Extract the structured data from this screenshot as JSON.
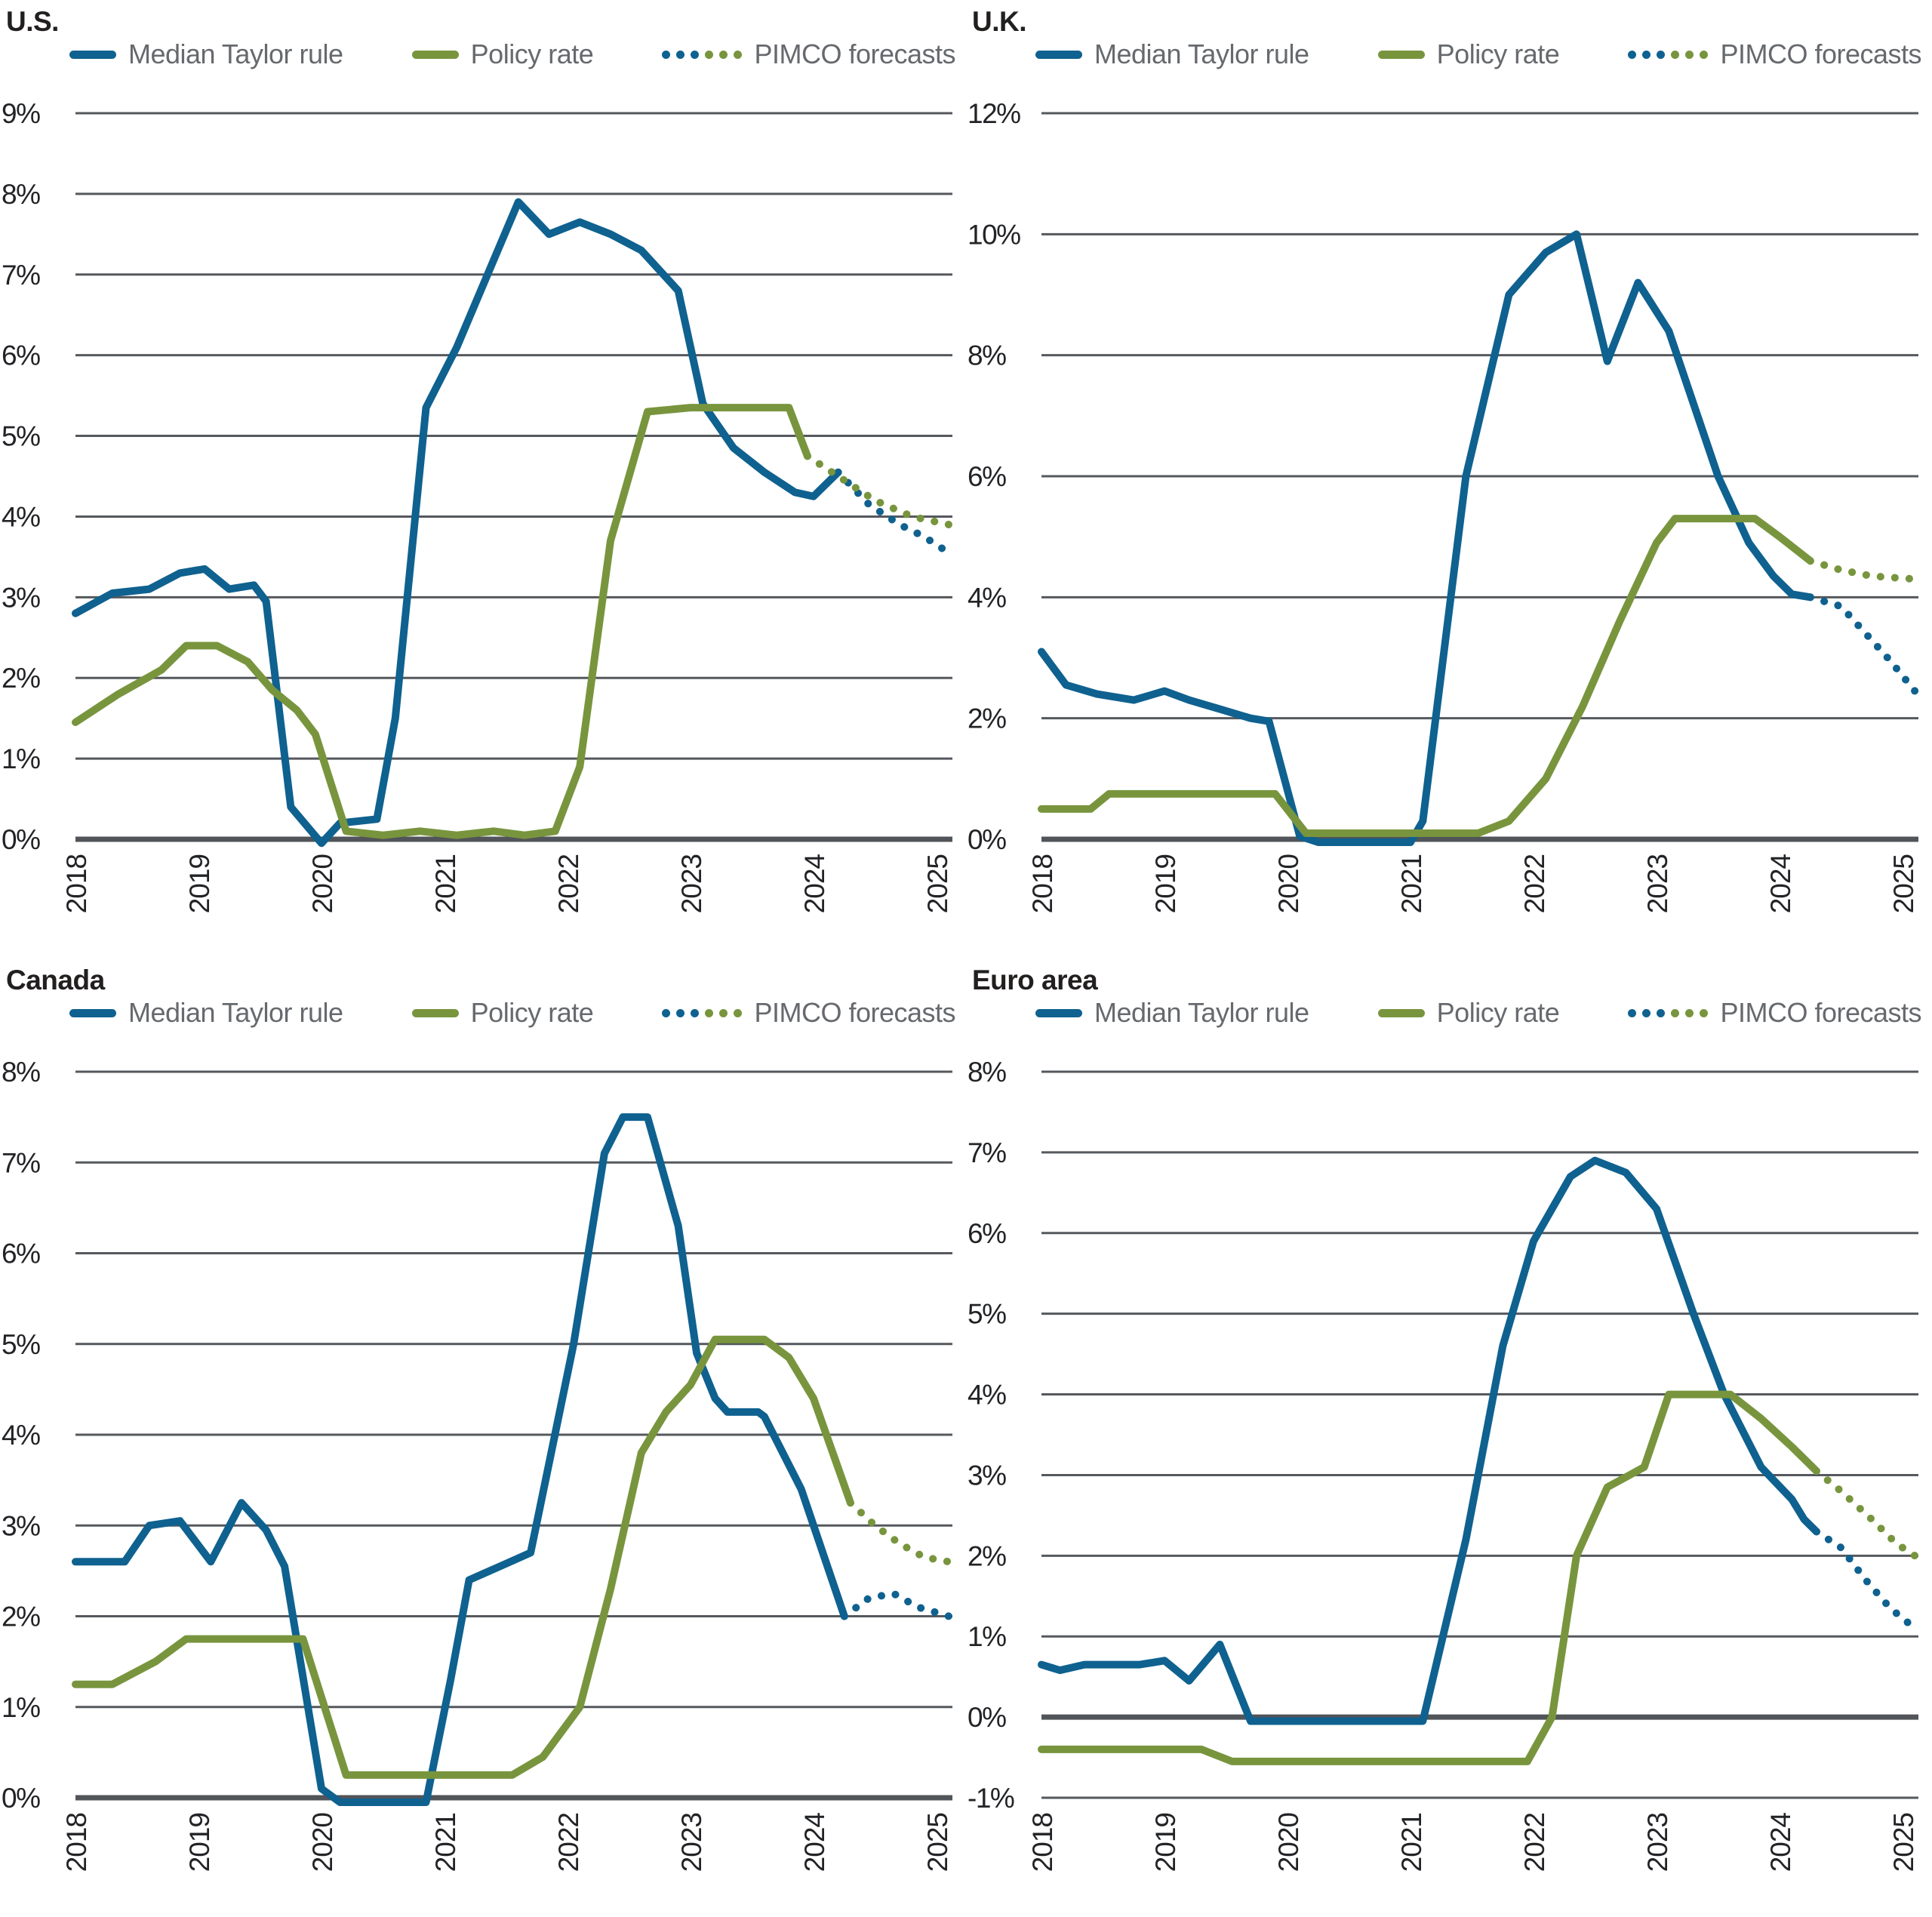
{
  "colors": {
    "taylor": "#0F618F",
    "policy": "#78953E",
    "gridline": "#55585D",
    "zero_line": "#515459",
    "title_text": "#221F1F",
    "legend_text": "#66696D",
    "tick_text": "#222326",
    "background": "#FFFFFF"
  },
  "legend": {
    "taylor": "Median Taylor rule",
    "policy": "Policy rate",
    "forecast": "PIMCO forecasts"
  },
  "chart_data": [
    {
      "id": "us",
      "title": "U.S.",
      "type": "line",
      "ylabel": "percent",
      "ylim": [
        0,
        9
      ],
      "yticks": [
        9,
        8,
        7,
        6,
        5,
        4,
        3,
        2,
        1,
        0
      ],
      "x_labels": [
        2018,
        2019,
        2020,
        2021,
        2022,
        2023,
        2024,
        2025
      ],
      "x_range": [
        2018,
        2025.1
      ],
      "grid": "horizontal",
      "legend_position": "top",
      "series": [
        {
          "name": "Median Taylor rule",
          "color": "taylor",
          "style": "solid",
          "points": [
            [
              2018.0,
              2.8
            ],
            [
              2018.3,
              3.05
            ],
            [
              2018.6,
              3.1
            ],
            [
              2018.85,
              3.3
            ],
            [
              2019.05,
              3.35
            ],
            [
              2019.25,
              3.1
            ],
            [
              2019.45,
              3.15
            ],
            [
              2019.55,
              2.95
            ],
            [
              2019.75,
              0.4
            ],
            [
              2020.0,
              -0.05
            ],
            [
              2020.15,
              0.2
            ],
            [
              2020.45,
              0.25
            ],
            [
              2020.6,
              1.5
            ],
            [
              2020.85,
              5.35
            ],
            [
              2021.1,
              6.1
            ],
            [
              2021.35,
              7.0
            ],
            [
              2021.6,
              7.9
            ],
            [
              2021.85,
              7.5
            ],
            [
              2022.1,
              7.65
            ],
            [
              2022.35,
              7.5
            ],
            [
              2022.6,
              7.3
            ],
            [
              2022.9,
              6.8
            ],
            [
              2023.1,
              5.4
            ],
            [
              2023.35,
              4.85
            ],
            [
              2023.6,
              4.55
            ],
            [
              2023.85,
              4.3
            ],
            [
              2024.0,
              4.25
            ],
            [
              2024.2,
              4.55
            ]
          ]
        },
        {
          "name": "Policy rate",
          "color": "policy",
          "style": "solid",
          "points": [
            [
              2018.0,
              1.45
            ],
            [
              2018.35,
              1.8
            ],
            [
              2018.7,
              2.1
            ],
            [
              2018.9,
              2.4
            ],
            [
              2019.15,
              2.4
            ],
            [
              2019.4,
              2.2
            ],
            [
              2019.6,
              1.85
            ],
            [
              2019.8,
              1.6
            ],
            [
              2019.95,
              1.3
            ],
            [
              2020.2,
              0.1
            ],
            [
              2020.5,
              0.05
            ],
            [
              2020.8,
              0.1
            ],
            [
              2021.1,
              0.05
            ],
            [
              2021.4,
              0.1
            ],
            [
              2021.65,
              0.05
            ],
            [
              2021.9,
              0.1
            ],
            [
              2022.1,
              0.9
            ],
            [
              2022.35,
              3.7
            ],
            [
              2022.65,
              5.3
            ],
            [
              2023.0,
              5.35
            ],
            [
              2023.8,
              5.35
            ],
            [
              2023.95,
              4.75
            ]
          ]
        },
        {
          "name": "PIMCO forecast (Taylor rule)",
          "color": "taylor",
          "style": "dotted",
          "points": [
            [
              2024.2,
              4.55
            ],
            [
              2024.45,
              4.15
            ],
            [
              2024.7,
              3.9
            ],
            [
              2024.9,
              3.75
            ],
            [
              2025.1,
              3.55
            ]
          ]
        },
        {
          "name": "PIMCO forecast (policy rate)",
          "color": "policy",
          "style": "dotted",
          "points": [
            [
              2023.95,
              4.75
            ],
            [
              2024.2,
              4.5
            ],
            [
              2024.5,
              4.2
            ],
            [
              2024.8,
              4.0
            ],
            [
              2025.1,
              3.9
            ]
          ]
        }
      ]
    },
    {
      "id": "uk",
      "title": "U.K.",
      "type": "line",
      "ylabel": "percent",
      "ylim": [
        0,
        12
      ],
      "yticks": [
        12,
        10,
        8,
        6,
        4,
        2,
        0
      ],
      "x_labels": [
        2018,
        2019,
        2020,
        2021,
        2022,
        2023,
        2024,
        2025
      ],
      "x_range": [
        2018,
        2025.1
      ],
      "grid": "horizontal",
      "legend_position": "top",
      "series": [
        {
          "name": "Median Taylor rule",
          "color": "taylor",
          "style": "solid",
          "points": [
            [
              2018.0,
              3.1
            ],
            [
              2018.2,
              2.55
            ],
            [
              2018.45,
              2.4
            ],
            [
              2018.75,
              2.3
            ],
            [
              2019.0,
              2.45
            ],
            [
              2019.2,
              2.3
            ],
            [
              2019.45,
              2.15
            ],
            [
              2019.7,
              2.0
            ],
            [
              2019.85,
              1.95
            ],
            [
              2020.1,
              0.05
            ],
            [
              2020.25,
              -0.05
            ],
            [
              2021.0,
              -0.05
            ],
            [
              2021.1,
              0.3
            ],
            [
              2021.45,
              6.0
            ],
            [
              2021.8,
              9.0
            ],
            [
              2022.1,
              9.7
            ],
            [
              2022.35,
              10.0
            ],
            [
              2022.6,
              7.9
            ],
            [
              2022.85,
              9.2
            ],
            [
              2023.1,
              8.4
            ],
            [
              2023.3,
              7.2
            ],
            [
              2023.5,
              6.0
            ],
            [
              2023.75,
              4.9
            ],
            [
              2023.95,
              4.35
            ],
            [
              2024.1,
              4.05
            ],
            [
              2024.25,
              4.0
            ]
          ]
        },
        {
          "name": "Policy rate",
          "color": "policy",
          "style": "solid",
          "points": [
            [
              2018.0,
              0.5
            ],
            [
              2018.4,
              0.5
            ],
            [
              2018.55,
              0.75
            ],
            [
              2019.9,
              0.75
            ],
            [
              2020.15,
              0.1
            ],
            [
              2021.55,
              0.1
            ],
            [
              2021.8,
              0.3
            ],
            [
              2022.1,
              1.0
            ],
            [
              2022.4,
              2.2
            ],
            [
              2022.7,
              3.6
            ],
            [
              2023.0,
              4.9
            ],
            [
              2023.15,
              5.3
            ],
            [
              2023.8,
              5.3
            ],
            [
              2024.0,
              5.0
            ],
            [
              2024.25,
              4.6
            ]
          ]
        },
        {
          "name": "PIMCO forecast (Taylor rule)",
          "color": "taylor",
          "style": "dotted",
          "points": [
            [
              2024.25,
              4.0
            ],
            [
              2024.5,
              3.85
            ],
            [
              2024.7,
              3.4
            ],
            [
              2024.9,
              2.95
            ],
            [
              2025.1,
              2.45
            ]
          ]
        },
        {
          "name": "PIMCO forecast (policy rate)",
          "color": "policy",
          "style": "dotted",
          "points": [
            [
              2024.25,
              4.6
            ],
            [
              2024.5,
              4.45
            ],
            [
              2024.75,
              4.35
            ],
            [
              2025.1,
              4.3
            ]
          ]
        }
      ]
    },
    {
      "id": "canada",
      "title": "Canada",
      "type": "line",
      "ylabel": "percent",
      "ylim": [
        0,
        8
      ],
      "yticks": [
        8,
        7,
        6,
        5,
        4,
        3,
        2,
        1,
        0
      ],
      "x_labels": [
        2018,
        2019,
        2020,
        2021,
        2022,
        2023,
        2024,
        2025
      ],
      "x_range": [
        2018,
        2025.1
      ],
      "grid": "horizontal",
      "legend_position": "top",
      "series": [
        {
          "name": "Median Taylor rule",
          "color": "taylor",
          "style": "solid",
          "points": [
            [
              2018.0,
              2.6
            ],
            [
              2018.4,
              2.6
            ],
            [
              2018.6,
              3.0
            ],
            [
              2018.85,
              3.05
            ],
            [
              2019.1,
              2.6
            ],
            [
              2019.35,
              3.25
            ],
            [
              2019.55,
              2.95
            ],
            [
              2019.7,
              2.55
            ],
            [
              2020.0,
              0.1
            ],
            [
              2020.15,
              -0.05
            ],
            [
              2020.85,
              -0.05
            ],
            [
              2021.05,
              1.3
            ],
            [
              2021.2,
              2.4
            ],
            [
              2021.45,
              2.55
            ],
            [
              2021.7,
              2.7
            ],
            [
              2022.05,
              5.0
            ],
            [
              2022.3,
              7.1
            ],
            [
              2022.45,
              7.5
            ],
            [
              2022.65,
              7.5
            ],
            [
              2022.9,
              6.3
            ],
            [
              2023.05,
              4.9
            ],
            [
              2023.2,
              4.4
            ],
            [
              2023.3,
              4.25
            ],
            [
              2023.55,
              4.25
            ],
            [
              2023.6,
              4.2
            ],
            [
              2023.9,
              3.4
            ],
            [
              2024.1,
              2.6
            ],
            [
              2024.25,
              2.0
            ]
          ]
        },
        {
          "name": "Policy rate",
          "color": "policy",
          "style": "solid",
          "points": [
            [
              2018.0,
              1.25
            ],
            [
              2018.3,
              1.25
            ],
            [
              2018.65,
              1.5
            ],
            [
              2018.9,
              1.75
            ],
            [
              2019.85,
              1.75
            ],
            [
              2020.2,
              0.25
            ],
            [
              2021.55,
              0.25
            ],
            [
              2021.8,
              0.45
            ],
            [
              2022.1,
              1.0
            ],
            [
              2022.35,
              2.3
            ],
            [
              2022.6,
              3.8
            ],
            [
              2022.8,
              4.25
            ],
            [
              2023.0,
              4.55
            ],
            [
              2023.2,
              5.05
            ],
            [
              2023.6,
              5.05
            ],
            [
              2023.8,
              4.85
            ],
            [
              2024.0,
              4.4
            ],
            [
              2024.3,
              3.25
            ]
          ]
        },
        {
          "name": "PIMCO forecast (Taylor rule)",
          "color": "taylor",
          "style": "dotted",
          "points": [
            [
              2024.25,
              2.0
            ],
            [
              2024.45,
              2.2
            ],
            [
              2024.65,
              2.25
            ],
            [
              2024.85,
              2.1
            ],
            [
              2025.1,
              2.0
            ]
          ]
        },
        {
          "name": "PIMCO forecast (policy rate)",
          "color": "policy",
          "style": "dotted",
          "points": [
            [
              2024.3,
              3.25
            ],
            [
              2024.5,
              3.0
            ],
            [
              2024.7,
              2.8
            ],
            [
              2024.9,
              2.65
            ],
            [
              2025.1,
              2.6
            ]
          ]
        }
      ]
    },
    {
      "id": "euro",
      "title": "Euro area",
      "type": "line",
      "ylabel": "percent",
      "ylim": [
        -1,
        8
      ],
      "yticks": [
        8,
        7,
        6,
        5,
        4,
        3,
        2,
        1,
        0,
        -1
      ],
      "x_labels": [
        2018,
        2019,
        2020,
        2021,
        2022,
        2023,
        2024,
        2025
      ],
      "x_range": [
        2018,
        2025.1
      ],
      "grid": "horizontal",
      "legend_position": "top",
      "series": [
        {
          "name": "Median Taylor rule",
          "color": "taylor",
          "style": "solid",
          "points": [
            [
              2018.0,
              0.65
            ],
            [
              2018.15,
              0.58
            ],
            [
              2018.35,
              0.65
            ],
            [
              2018.8,
              0.65
            ],
            [
              2019.0,
              0.7
            ],
            [
              2019.2,
              0.45
            ],
            [
              2019.45,
              0.9
            ],
            [
              2019.7,
              -0.05
            ],
            [
              2021.1,
              -0.05
            ],
            [
              2021.45,
              2.2
            ],
            [
              2021.75,
              4.6
            ],
            [
              2022.0,
              5.9
            ],
            [
              2022.3,
              6.7
            ],
            [
              2022.5,
              6.9
            ],
            [
              2022.75,
              6.75
            ],
            [
              2023.0,
              6.3
            ],
            [
              2023.3,
              5.0
            ],
            [
              2023.55,
              4.0
            ],
            [
              2023.85,
              3.1
            ],
            [
              2024.1,
              2.7
            ],
            [
              2024.2,
              2.45
            ],
            [
              2024.3,
              2.3
            ]
          ]
        },
        {
          "name": "Policy rate",
          "color": "policy",
          "style": "solid",
          "points": [
            [
              2018.0,
              -0.4
            ],
            [
              2019.3,
              -0.4
            ],
            [
              2019.55,
              -0.55
            ],
            [
              2021.95,
              -0.55
            ],
            [
              2022.15,
              0.0
            ],
            [
              2022.35,
              2.0
            ],
            [
              2022.6,
              2.85
            ],
            [
              2022.9,
              3.1
            ],
            [
              2023.1,
              4.0
            ],
            [
              2023.6,
              4.0
            ],
            [
              2023.85,
              3.7
            ],
            [
              2024.1,
              3.35
            ],
            [
              2024.3,
              3.05
            ]
          ]
        },
        {
          "name": "PIMCO forecast (Taylor rule)",
          "color": "taylor",
          "style": "dotted",
          "points": [
            [
              2024.3,
              2.3
            ],
            [
              2024.5,
              2.1
            ],
            [
              2024.7,
              1.7
            ],
            [
              2024.9,
              1.35
            ],
            [
              2025.1,
              1.1
            ]
          ]
        },
        {
          "name": "PIMCO forecast (policy rate)",
          "color": "policy",
          "style": "dotted",
          "points": [
            [
              2024.3,
              3.05
            ],
            [
              2024.5,
              2.8
            ],
            [
              2024.75,
              2.45
            ],
            [
              2024.95,
              2.15
            ],
            [
              2025.1,
              2.0
            ]
          ]
        }
      ]
    }
  ]
}
